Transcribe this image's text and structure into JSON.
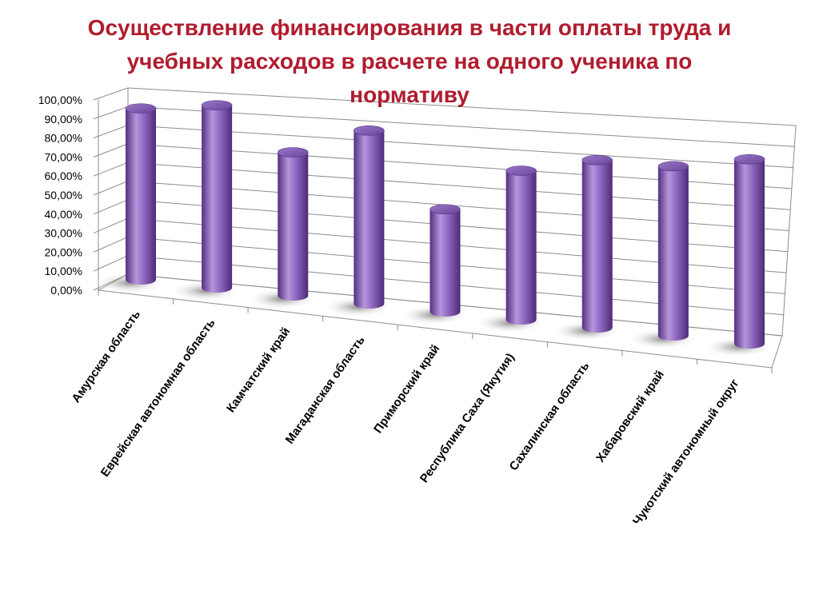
{
  "title_lines": [
    "Осуществление финансирования в части оплаты труда и",
    "учебных расходов в расчете на одного ученика по",
    "нормативу"
  ],
  "colors": {
    "title": "#b01c2e",
    "bar_dark": "#55307f",
    "bar_mid": "#9068c2",
    "bar_light": "#c3a6e6",
    "bar_top": "#7a52ad",
    "grid": "#8c8c8c"
  },
  "chart_data": {
    "type": "bar",
    "style": "3d-cylinder",
    "title": "Осуществление финансирования в части оплаты труда и учебных расходов в расчете на одного ученика по нормативу",
    "xlabel": "",
    "ylabel": "",
    "ylim": [
      0,
      100
    ],
    "grid": true,
    "categories": [
      "Амурская область",
      "Еврейская автономная область",
      "Камчатский край",
      "Магаданская область",
      "Приморский край",
      "Республика Саха (Якутия)",
      "Сахалинская область",
      "Хабаровский край",
      "Чукотский автономный округ"
    ],
    "values": [
      92,
      98,
      77,
      93,
      55,
      80,
      90,
      91,
      99
    ],
    "yticks": [
      "0,00%",
      "10,00%",
      "20,00%",
      "30,00%",
      "40,00%",
      "50,00%",
      "60,00%",
      "70,00%",
      "80,00%",
      "90,00%",
      "100,00%"
    ]
  }
}
